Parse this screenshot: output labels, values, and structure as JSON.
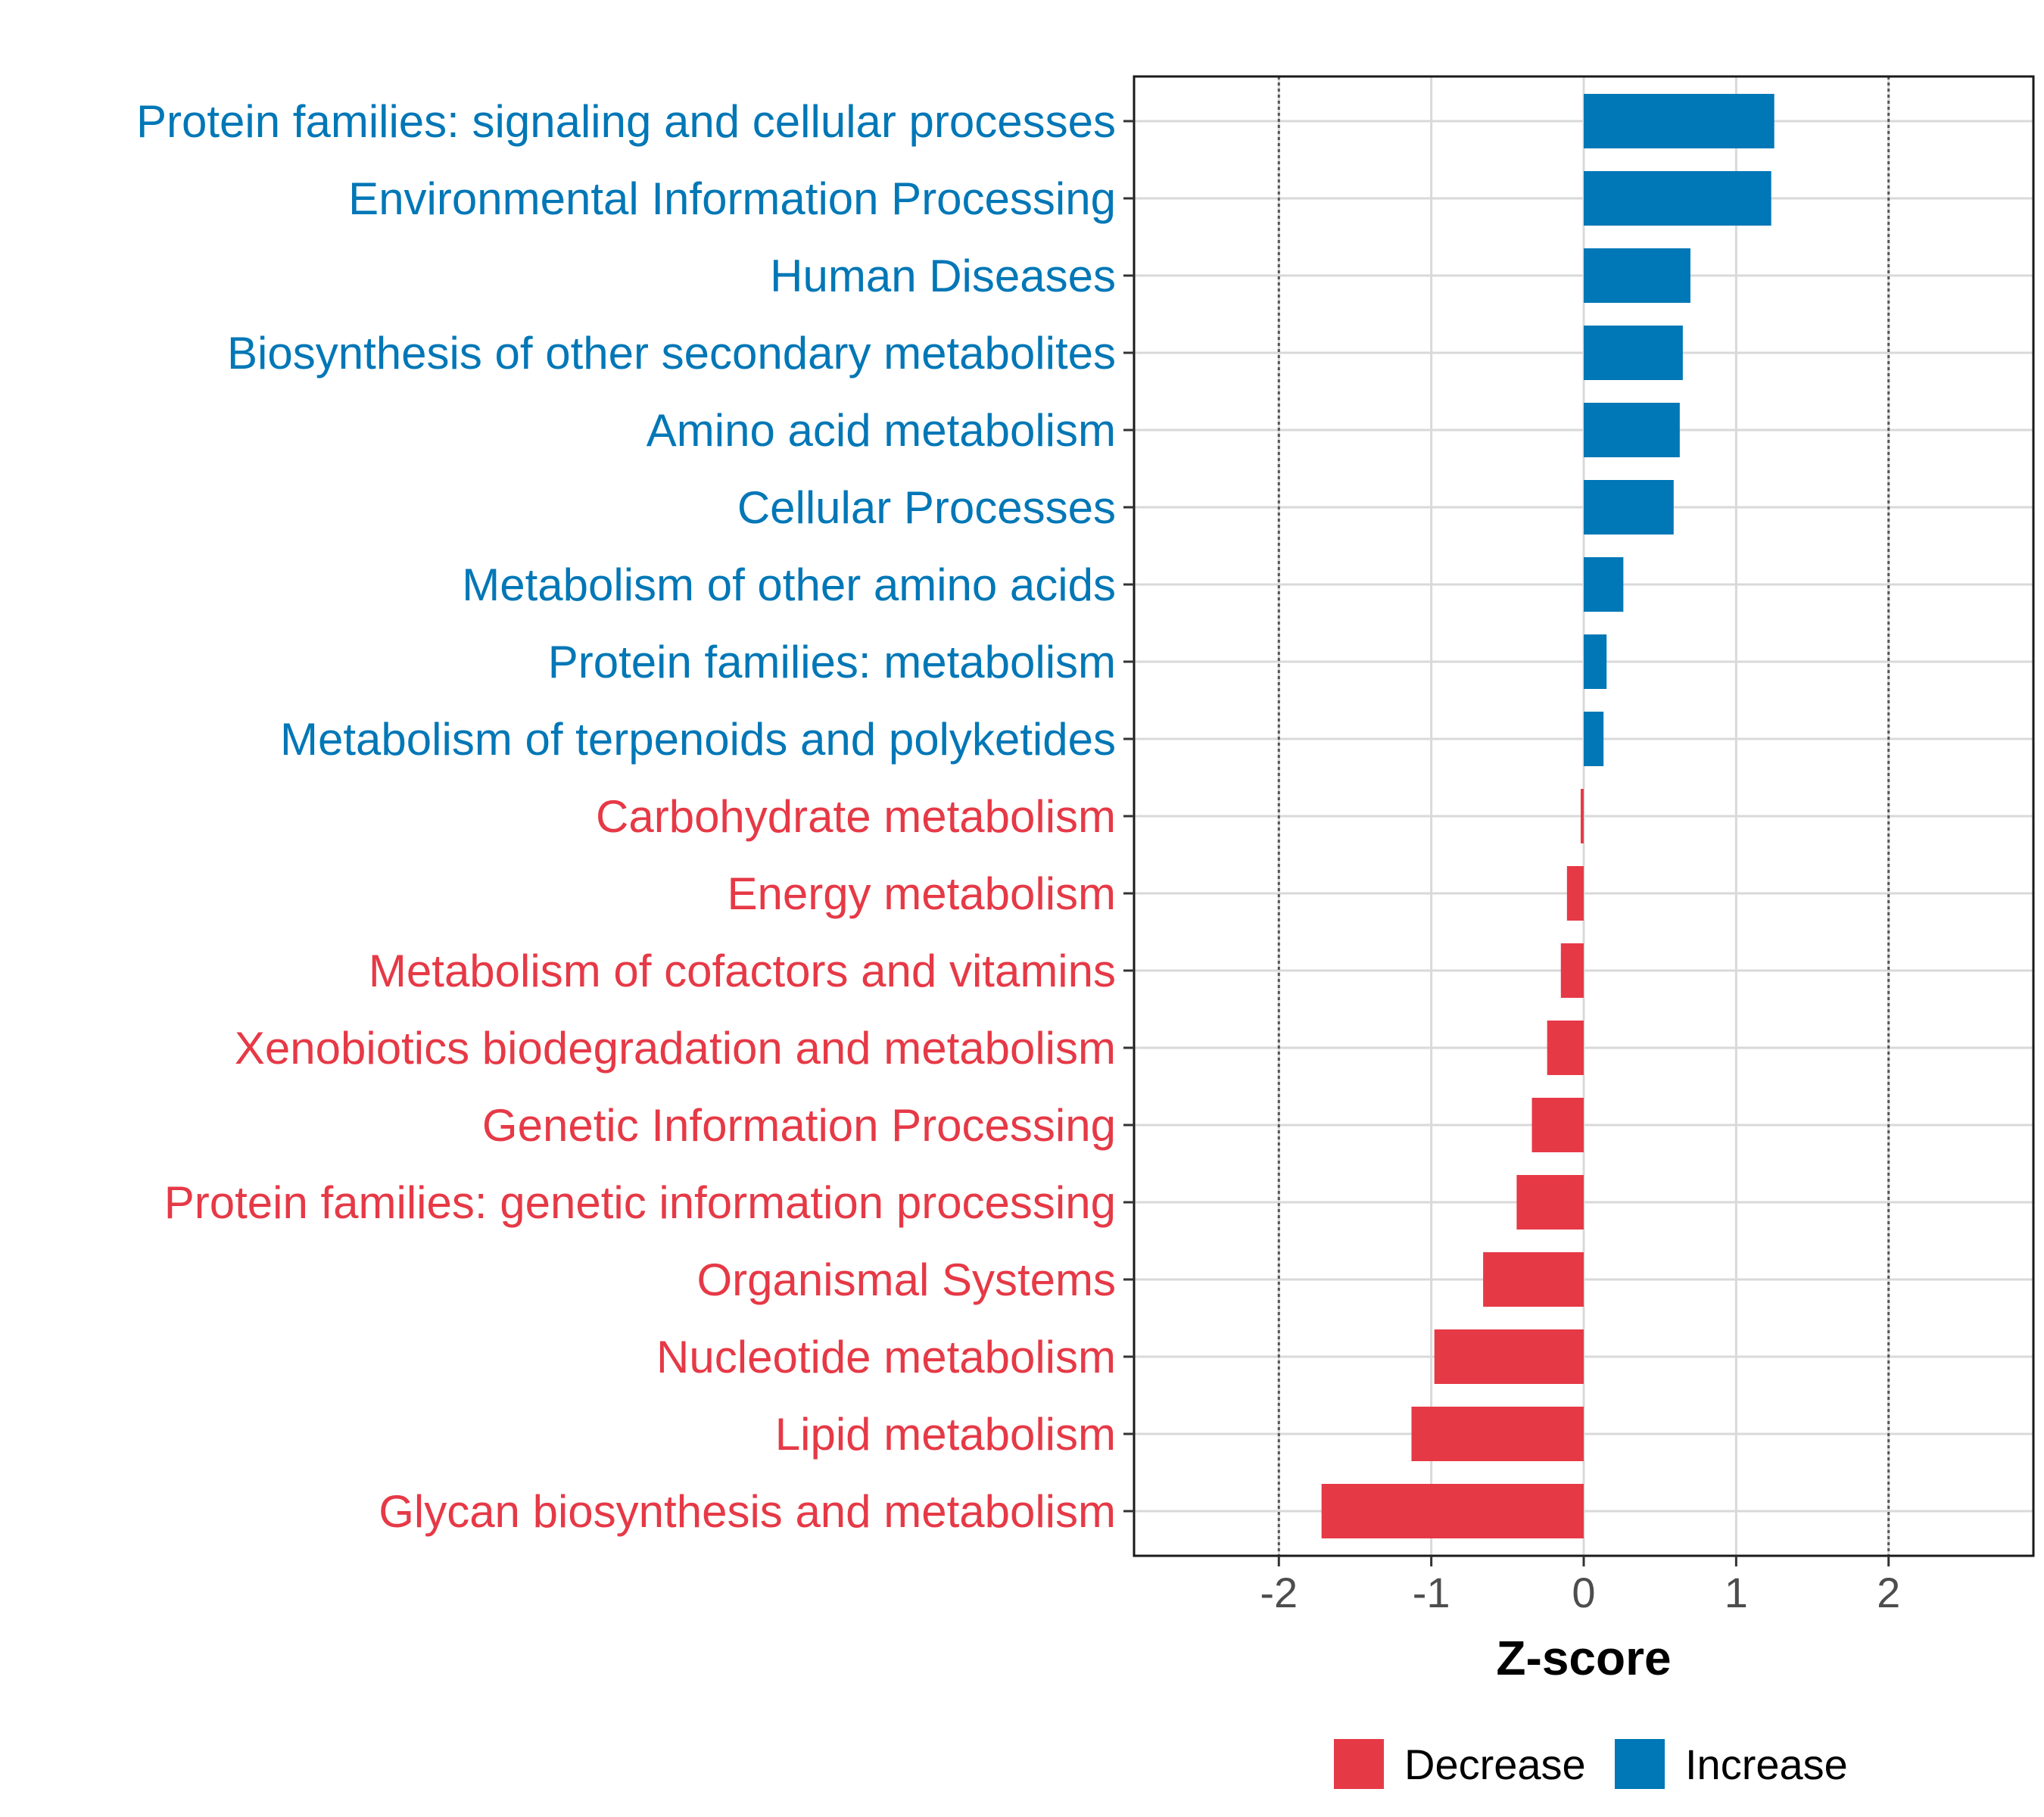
{
  "chart_data": {
    "type": "bar",
    "orientation": "horizontal",
    "xlabel": "Z-score",
    "xlim": [
      -2.95,
      2.95
    ],
    "x_ticks": [
      -2,
      -1,
      0,
      1,
      2
    ],
    "x_tick_labels": [
      "-2",
      "-1",
      "0",
      "1",
      "2"
    ],
    "reference_lines": [
      -2,
      2
    ],
    "grid": true,
    "legend_position": "bottom",
    "colors": {
      "Decrease": "#e63946",
      "Increase": "#0077b6"
    },
    "legend": [
      {
        "label": "Decrease",
        "color": "#e63946"
      },
      {
        "label": "Increase",
        "color": "#0077b6"
      }
    ],
    "categories": [
      "Protein families: signaling and cellular processes",
      "Environmental Information Processing",
      "Human Diseases",
      "Biosynthesis of other secondary metabolites",
      "Amino acid metabolism",
      "Cellular Processes",
      "Metabolism of other amino acids",
      "Protein families: metabolism",
      "Metabolism of terpenoids and polyketides",
      "Carbohydrate metabolism",
      "Energy metabolism",
      "Metabolism of cofactors and vitamins",
      "Xenobiotics biodegradation and metabolism",
      "Genetic Information Processing",
      "Protein families: genetic information processing",
      "Organismal Systems",
      "Nucleotide metabolism",
      "Lipid metabolism",
      "Glycan biosynthesis and metabolism"
    ],
    "values": [
      1.25,
      1.23,
      0.7,
      0.65,
      0.63,
      0.59,
      0.26,
      0.15,
      0.13,
      -0.02,
      -0.11,
      -0.15,
      -0.24,
      -0.34,
      -0.44,
      -0.66,
      -0.98,
      -1.13,
      -1.72
    ],
    "groups": [
      "Increase",
      "Increase",
      "Increase",
      "Increase",
      "Increase",
      "Increase",
      "Increase",
      "Increase",
      "Increase",
      "Decrease",
      "Decrease",
      "Decrease",
      "Decrease",
      "Decrease",
      "Decrease",
      "Decrease",
      "Decrease",
      "Decrease",
      "Decrease"
    ]
  }
}
